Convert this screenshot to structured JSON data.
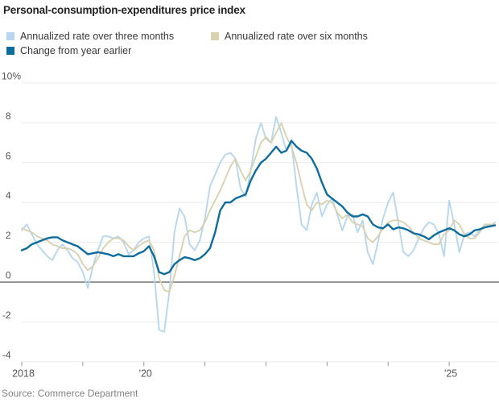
{
  "title": "Personal-consumption-expenditures price index",
  "source": "Source: Commerce Department",
  "legend": [
    {
      "label": "Annualized rate over three months",
      "color": "#b7d7ee"
    },
    {
      "label": "Annualized rate over six months",
      "color": "#d8d2b0"
    },
    {
      "label": "Change from year earlier",
      "color": "#0e6d9c"
    }
  ],
  "chart_data": {
    "type": "line",
    "title": "Personal-consumption-expenditures price index",
    "x_unit": "month",
    "x_start": "2018-01",
    "x_end": "2025-10",
    "ylim": [
      -4,
      10
    ],
    "y_ticks": [
      10,
      8,
      6,
      4,
      2,
      0,
      -2,
      -4
    ],
    "y_tick_labels": [
      "10%",
      "8",
      "6",
      "4",
      "2",
      "0",
      "-2",
      "-4"
    ],
    "x_tick_years": [
      2018,
      2019,
      2020,
      2021,
      2022,
      2023,
      2024,
      2025
    ],
    "x_tick_labels": [
      "2018",
      "",
      "'20",
      "",
      "",
      "",
      "",
      "'25"
    ],
    "grid": "horizontal",
    "zero_line_color": "#979797",
    "grid_color": "#ebebeb",
    "axis_text_color": "#555555",
    "legend_position": "top",
    "series": [
      {
        "name": "Annualized rate over three months",
        "color": "#b7d7ee",
        "stroke_width": 1.9,
        "values": [
          2.6,
          2.9,
          2.4,
          1.9,
          1.6,
          1.3,
          1.1,
          1.6,
          1.9,
          1.6,
          1.2,
          1.0,
          0.5,
          -0.3,
          0.8,
          1.6,
          2.3,
          2.3,
          2.2,
          2.3,
          2.0,
          1.4,
          1.6,
          2.0,
          2.2,
          2.3,
          0.5,
          -2.4,
          -2.5,
          -0.5,
          2.5,
          3.7,
          3.3,
          1.9,
          1.6,
          2.1,
          3.2,
          4.8,
          5.4,
          6.0,
          6.4,
          6.5,
          6.2,
          4.7,
          4.3,
          5.6,
          7.2,
          8.0,
          7.2,
          7.0,
          8.3,
          7.5,
          6.6,
          7.0,
          4.8,
          2.9,
          2.6,
          3.9,
          4.5,
          3.3,
          3.9,
          4.2,
          3.4,
          2.6,
          3.3,
          3.4,
          2.5,
          3.1,
          1.5,
          0.9,
          2.0,
          3.2,
          4.0,
          4.5,
          3.0,
          1.5,
          1.3,
          1.6,
          2.2,
          2.7,
          3.0,
          2.9,
          2.4,
          1.3,
          4.1,
          2.9,
          1.5,
          2.4,
          2.5,
          2.3,
          2.6,
          2.9,
          2.8,
          3.0
        ]
      },
      {
        "name": "Annualized rate over six months",
        "color": "#d8d2b0",
        "stroke_width": 1.9,
        "values": [
          2.7,
          2.6,
          2.5,
          2.3,
          2.2,
          2.1,
          1.9,
          1.8,
          1.7,
          1.7,
          1.6,
          1.4,
          0.9,
          0.6,
          0.8,
          1.2,
          1.7,
          2.0,
          2.2,
          2.2,
          2.1,
          1.8,
          1.6,
          1.8,
          2.0,
          2.1,
          1.6,
          0.2,
          -0.4,
          -0.5,
          0.3,
          1.3,
          2.3,
          2.6,
          2.5,
          2.6,
          3.0,
          3.6,
          4.1,
          4.6,
          5.2,
          5.8,
          6.2,
          5.6,
          5.1,
          5.6,
          6.3,
          7.0,
          7.3,
          7.0,
          7.5,
          8.0,
          7.3,
          6.8,
          6.0,
          4.9,
          3.9,
          3.6,
          4.0,
          3.9,
          4.1,
          4.0,
          3.5,
          3.2,
          3.4,
          3.0,
          2.9,
          2.8,
          2.2,
          2.0,
          2.3,
          2.7,
          3.0,
          3.1,
          3.1,
          3.0,
          2.8,
          2.5,
          2.2,
          2.1,
          2.0,
          1.9,
          1.9,
          2.4,
          2.6,
          3.1,
          2.9,
          2.4,
          2.2,
          2.2,
          2.5,
          2.9,
          2.9,
          2.9
        ]
      },
      {
        "name": "Change from year earlier",
        "color": "#0e6d9c",
        "stroke_width": 2.4,
        "values": [
          1.6,
          1.7,
          1.9,
          2.0,
          2.1,
          2.2,
          2.25,
          2.25,
          2.1,
          2.0,
          1.9,
          1.8,
          1.6,
          1.4,
          1.45,
          1.5,
          1.45,
          1.4,
          1.3,
          1.4,
          1.3,
          1.3,
          1.3,
          1.45,
          1.55,
          1.8,
          1.3,
          0.5,
          0.4,
          0.5,
          0.9,
          1.1,
          1.25,
          1.2,
          1.1,
          1.2,
          1.4,
          1.7,
          2.5,
          3.6,
          4.0,
          4.0,
          4.2,
          4.3,
          4.4,
          5.1,
          5.6,
          6.0,
          6.2,
          6.5,
          6.8,
          6.5,
          6.6,
          7.1,
          6.8,
          6.6,
          6.5,
          6.2,
          5.7,
          5.0,
          4.4,
          4.2,
          4.0,
          3.8,
          3.5,
          3.3,
          3.3,
          3.4,
          3.3,
          2.9,
          2.75,
          2.7,
          2.9,
          2.65,
          2.75,
          2.7,
          2.6,
          2.45,
          2.4,
          2.3,
          2.15,
          2.35,
          2.5,
          2.6,
          2.7,
          2.6,
          2.4,
          2.3,
          2.4,
          2.6,
          2.65,
          2.75,
          2.8,
          2.85
        ]
      }
    ]
  }
}
